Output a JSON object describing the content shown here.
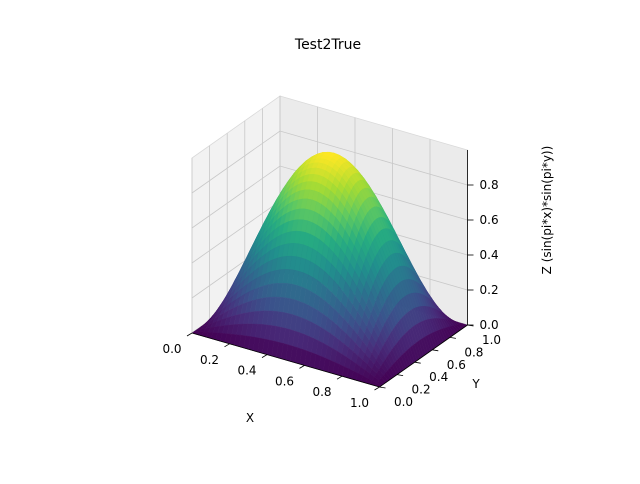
{
  "chart_data": {
    "type": "surface3d",
    "title": "Test2True",
    "xlabel": "X",
    "ylabel": "Y",
    "zlabel": "Z (sin(pi*x)*sin(pi*y))",
    "function": "sin(pi*x)*sin(pi*y)",
    "x_range": [
      0,
      1
    ],
    "y_range": [
      0,
      1
    ],
    "z_range": [
      0,
      1
    ],
    "x_ticks": [
      "0.0",
      "0.2",
      "0.4",
      "0.6",
      "0.8",
      "1.0"
    ],
    "y_ticks": [
      "0.0",
      "0.2",
      "0.4",
      "0.6",
      "0.8",
      "1.0"
    ],
    "z_ticks": [
      "0.0",
      "0.2",
      "0.4",
      "0.6",
      "0.8"
    ],
    "colormap": "viridis",
    "pane_color": "#f2f2f2",
    "grid": true
  }
}
